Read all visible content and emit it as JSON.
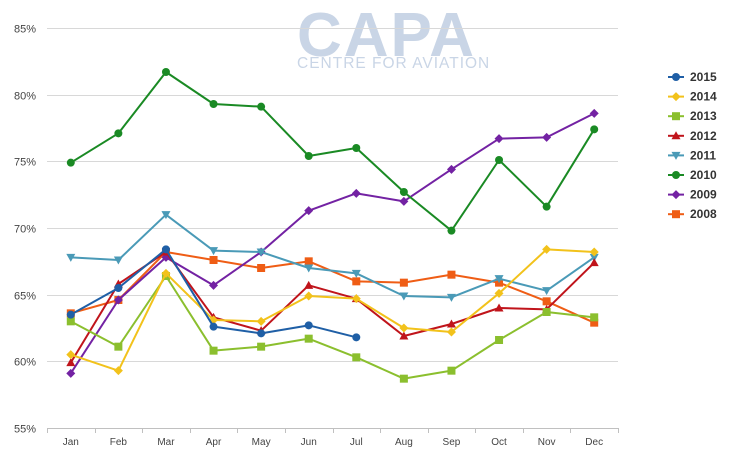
{
  "watermark": {
    "main": "CAPA",
    "sub": "CENTRE FOR AVIATION"
  },
  "chart_data": {
    "type": "line",
    "title": "",
    "xlabel": "",
    "ylabel": "",
    "categories": [
      "Jan",
      "Feb",
      "Mar",
      "Apr",
      "May",
      "Jun",
      "Jul",
      "Aug",
      "Sep",
      "Oct",
      "Nov",
      "Dec"
    ],
    "ylim": [
      55,
      85
    ],
    "yticks": [
      55,
      60,
      65,
      70,
      75,
      80,
      85
    ],
    "ytick_labels": [
      "55%",
      "60%",
      "65%",
      "70%",
      "75%",
      "80%",
      "85%"
    ],
    "grid": true,
    "legend_position": "right",
    "series": [
      {
        "name": "2015",
        "color": "#1f5fa6",
        "marker": "circle",
        "values": [
          63.5,
          65.5,
          68.4,
          62.6,
          62.1,
          62.7,
          61.8,
          null,
          null,
          null,
          null,
          null
        ]
      },
      {
        "name": "2014",
        "color": "#f2c21b",
        "marker": "diamond",
        "values": [
          60.5,
          59.3,
          66.6,
          63.1,
          63.0,
          64.9,
          64.7,
          62.5,
          62.2,
          65.1,
          68.4,
          68.2
        ]
      },
      {
        "name": "2013",
        "color": "#8bbf2e",
        "marker": "square",
        "values": [
          63.0,
          61.1,
          66.4,
          60.8,
          61.1,
          61.7,
          60.3,
          58.7,
          59.3,
          61.6,
          63.7,
          63.3
        ]
      },
      {
        "name": "2012",
        "color": "#c0141b",
        "marker": "triangle",
        "values": [
          59.9,
          65.8,
          68.2,
          63.3,
          62.3,
          65.7,
          64.7,
          61.9,
          62.8,
          64.0,
          63.9,
          67.4
        ]
      },
      {
        "name": "2011",
        "color": "#4a9ab7",
        "marker": "triangle-down",
        "values": [
          67.8,
          67.6,
          71.0,
          68.3,
          68.2,
          67.0,
          66.6,
          64.9,
          64.8,
          66.2,
          65.3,
          67.8
        ]
      },
      {
        "name": "2010",
        "color": "#1a8a24",
        "marker": "circle",
        "values": [
          74.9,
          77.1,
          81.7,
          79.3,
          79.1,
          75.4,
          76.0,
          72.7,
          69.8,
          75.1,
          71.6,
          77.4
        ]
      },
      {
        "name": "2009",
        "color": "#7322a3",
        "marker": "diamond",
        "values": [
          59.1,
          64.6,
          67.8,
          65.7,
          68.2,
          71.3,
          72.6,
          72.0,
          74.4,
          76.7,
          76.8,
          78.6
        ]
      },
      {
        "name": "2008",
        "color": "#ef5d15",
        "marker": "square",
        "values": [
          63.6,
          64.6,
          68.2,
          67.6,
          67.0,
          67.5,
          66.0,
          65.9,
          66.5,
          65.9,
          64.5,
          62.9
        ]
      }
    ]
  }
}
